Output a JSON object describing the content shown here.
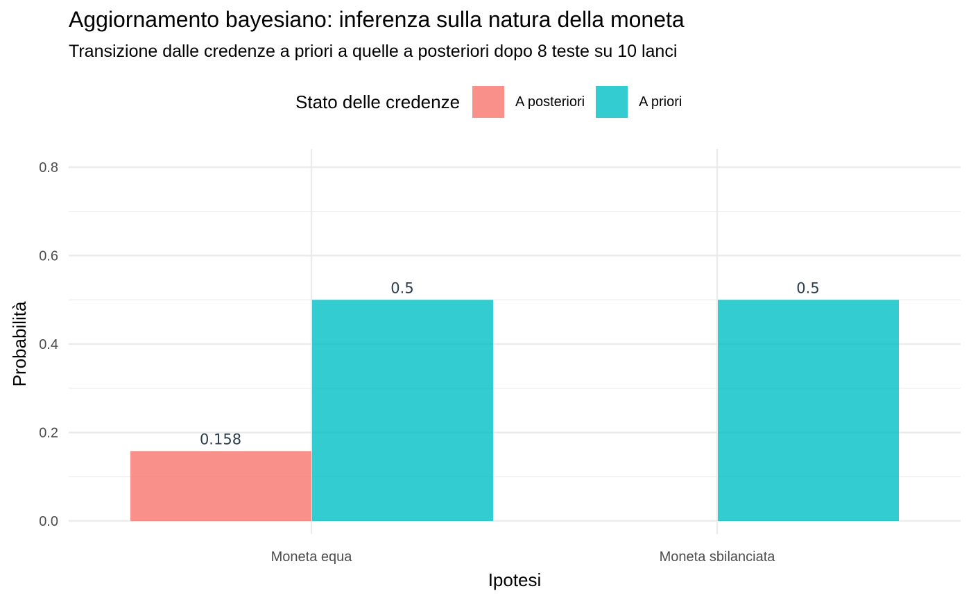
{
  "colors": {
    "posteriori": "#F8766D",
    "priori": "#00BFC4",
    "grid": "#EBEBEB",
    "axis_text": "#4D4D4D",
    "label_text": "#2C3E50"
  },
  "legend": {
    "title": "Stato delle credenze",
    "items": [
      {
        "label": "A posteriori",
        "series": "posteriori"
      },
      {
        "label": "A priori",
        "series": "priori"
      }
    ]
  },
  "chart_data": {
    "type": "bar",
    "title": "Aggiornamento bayesiano: inferenza sulla natura della moneta",
    "subtitle": "Transizione dalle credenze a priori a quelle a posteriori dopo 8 teste su 10 lanci",
    "xlabel": "Ipotesi",
    "ylabel": "Probabilità",
    "categories": [
      "Moneta equa",
      "Moneta sbilanciata"
    ],
    "series": [
      {
        "name": "A posteriori",
        "key": "posteriori",
        "values": [
          0.158,
          null
        ],
        "labels": [
          "0.158",
          ""
        ]
      },
      {
        "name": "A priori",
        "key": "priori",
        "values": [
          0.5,
          0.5
        ],
        "labels": [
          "0.5",
          "0.5"
        ]
      }
    ],
    "ylim": [
      0,
      0.8
    ],
    "yticks": [
      0.0,
      0.2,
      0.4,
      0.6,
      0.8
    ],
    "ytick_labels": [
      "0.0",
      "0.2",
      "0.4",
      "0.6",
      "0.8"
    ],
    "grid": true,
    "legend_position": "top"
  }
}
